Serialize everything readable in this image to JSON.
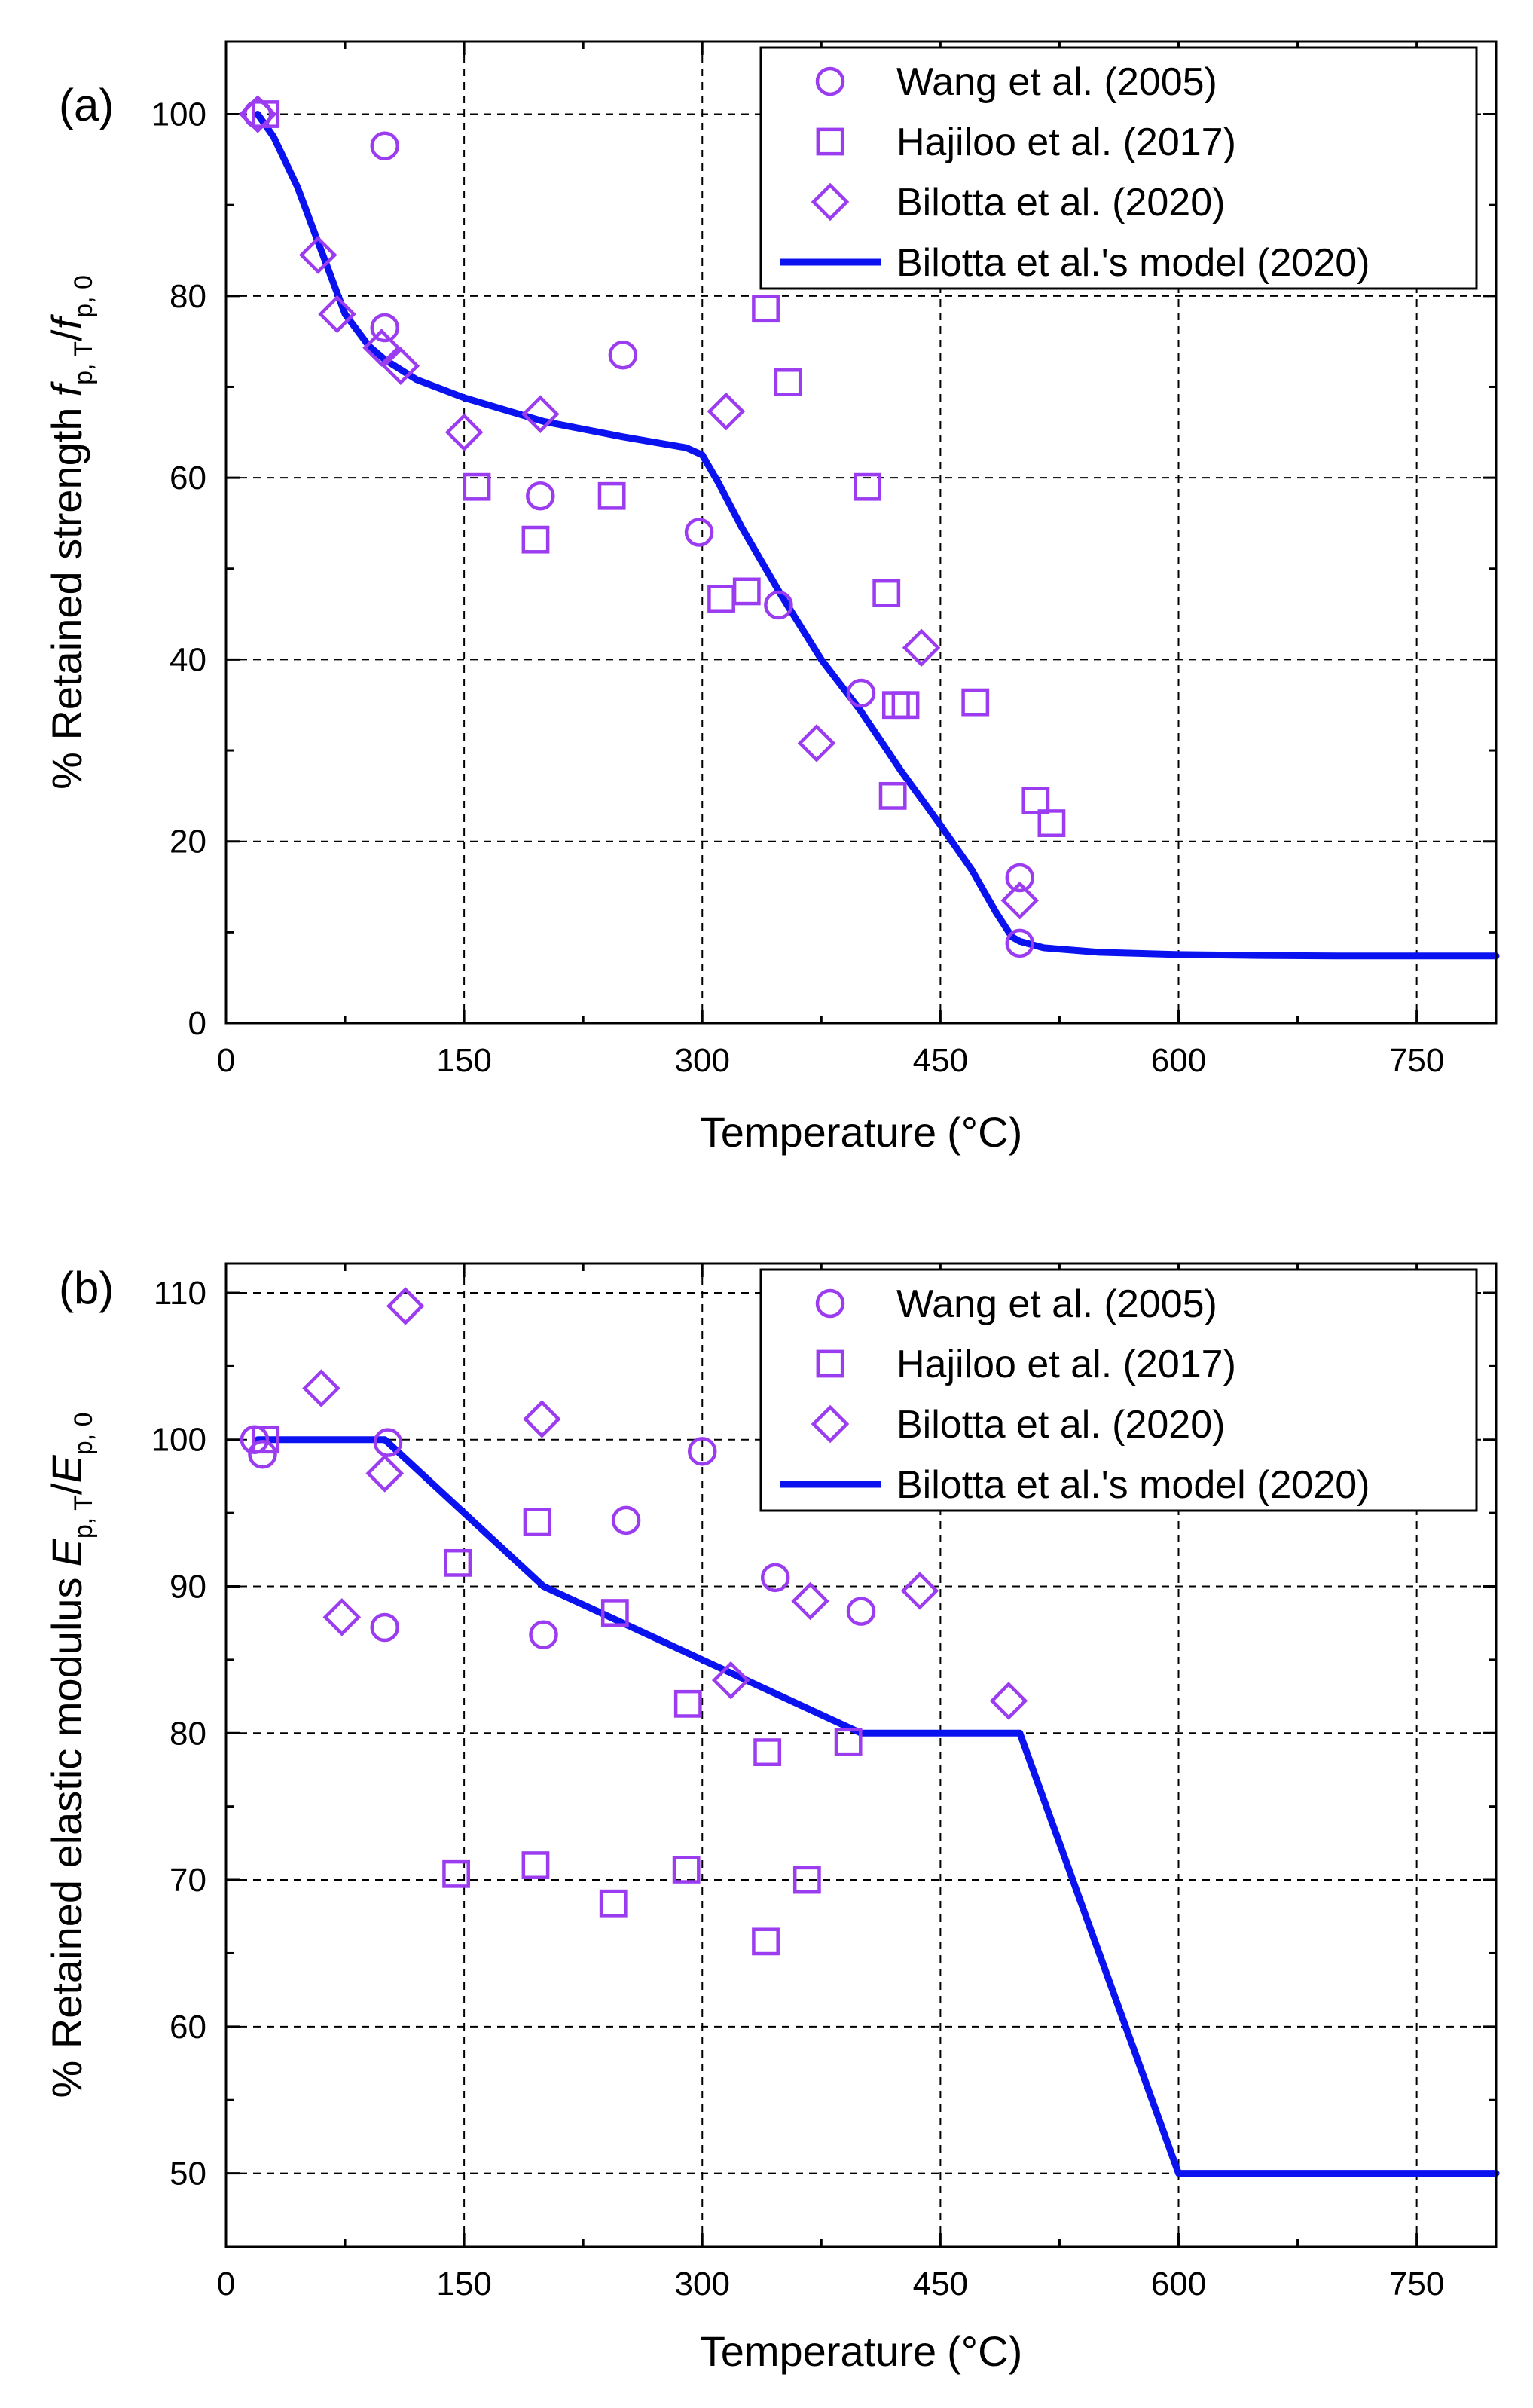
{
  "chart_data": [
    {
      "panel": "(a)",
      "type": "scatter",
      "xlabel": "Temperature",
      "xlabel_unit": "(°C)",
      "ylabel_prefix": "% Retained strength",
      "ylabel_symbol_1": "f",
      "ylabel_sub_1": "p, T",
      "ylabel_sep": "/",
      "ylabel_symbol_2": "f",
      "ylabel_sub_2": "p, 0",
      "xlim": [
        0,
        800
      ],
      "ylim": [
        0,
        108
      ],
      "xticks": [
        0,
        150,
        300,
        450,
        600,
        750
      ],
      "yticks": [
        0,
        20,
        40,
        60,
        80,
        100
      ],
      "grid": true,
      "legend_position": "top-right",
      "series": [
        {
          "name": "Wang et al. (2005)",
          "marker": "circle",
          "color": "#9b3cf0",
          "points": [
            [
              20,
              100
            ],
            [
              100,
              96.5
            ],
            [
              100,
              76.5
            ],
            [
              198,
              58
            ],
            [
              250,
              73.5
            ],
            [
              298,
              54
            ],
            [
              348,
              46
            ],
            [
              400,
              36.3
            ],
            [
              500,
              16
            ],
            [
              500,
              8.8
            ]
          ]
        },
        {
          "name": "Hajiloo et al. (2017)",
          "marker": "square",
          "color": "#9b3cf0",
          "points": [
            [
              25,
              100
            ],
            [
              158,
              59
            ],
            [
              195,
              53.2
            ],
            [
              243,
              58
            ],
            [
              312,
              46.7
            ],
            [
              328,
              47.5
            ],
            [
              340,
              78.6
            ],
            [
              354,
              70.5
            ],
            [
              404,
              59
            ],
            [
              416,
              47.3
            ],
            [
              420,
              25
            ],
            [
              422,
              35
            ],
            [
              428,
              35
            ],
            [
              472,
              35.3
            ],
            [
              510,
              24.5
            ],
            [
              520,
              22
            ]
          ]
        },
        {
          "name": "Bilotta et al. (2020)",
          "marker": "diamond",
          "color": "#9b3cf0",
          "points": [
            [
              20,
              100
            ],
            [
              58,
              84.5
            ],
            [
              70,
              78
            ],
            [
              98,
              74.3
            ],
            [
              110,
              72.3
            ],
            [
              150,
              65
            ],
            [
              198,
              67
            ],
            [
              315,
              67.3
            ],
            [
              372,
              30.8
            ],
            [
              438,
              41.3
            ],
            [
              500,
              13.5
            ]
          ]
        },
        {
          "name": "Bilotta et al.'s model (2020)",
          "type": "line",
          "color": "#0b12f0",
          "points": [
            [
              20,
              100
            ],
            [
              30,
              97.5
            ],
            [
              45,
              92
            ],
            [
              60,
              85
            ],
            [
              75,
              78
            ],
            [
              90,
              74.5
            ],
            [
              100,
              73
            ],
            [
              120,
              70.8
            ],
            [
              150,
              68.8
            ],
            [
              200,
              66.2
            ],
            [
              250,
              64.5
            ],
            [
              290,
              63.3
            ],
            [
              300,
              62.5
            ],
            [
              310,
              59.5
            ],
            [
              325,
              54.5
            ],
            [
              350,
              47
            ],
            [
              375,
              40
            ],
            [
              400,
              34.3
            ],
            [
              425,
              27.8
            ],
            [
              450,
              21.8
            ],
            [
              470,
              16.8
            ],
            [
              485,
              12.2
            ],
            [
              495,
              9.5
            ],
            [
              500,
              9
            ],
            [
              515,
              8.3
            ],
            [
              550,
              7.8
            ],
            [
              600,
              7.55
            ],
            [
              650,
              7.45
            ],
            [
              700,
              7.4
            ],
            [
              800,
              7.4
            ]
          ]
        }
      ]
    },
    {
      "panel": "(b)",
      "type": "scatter",
      "xlabel": "Temperature",
      "xlabel_unit": "(°C)",
      "ylabel_prefix": "% Retained elastic modulus",
      "ylabel_symbol_1": "E",
      "ylabel_sub_1": "p, T",
      "ylabel_sep": "/",
      "ylabel_symbol_2": "E",
      "ylabel_sub_2": "p, 0",
      "xlim": [
        0,
        800
      ],
      "ylim": [
        45,
        112
      ],
      "xticks": [
        0,
        150,
        300,
        450,
        600,
        750
      ],
      "yticks": [
        50,
        60,
        70,
        80,
        90,
        100,
        110
      ],
      "grid": true,
      "legend_position": "top-right",
      "series": [
        {
          "name": "Wang et al. (2005)",
          "marker": "circle",
          "color": "#9b3cf0",
          "points": [
            [
              18,
              100
            ],
            [
              23,
              99
            ],
            [
              102,
              99.8
            ],
            [
              100,
              87.2
            ],
            [
              200,
              86.7
            ],
            [
              252,
              94.5
            ],
            [
              300,
              99.2
            ],
            [
              346,
              90.6
            ],
            [
              400,
              88.3
            ]
          ]
        },
        {
          "name": "Hajiloo et al. (2017)",
          "marker": "square",
          "color": "#9b3cf0",
          "points": [
            [
              25,
              100
            ],
            [
              145,
              70.4
            ],
            [
              146,
              91.6
            ],
            [
              195,
              71
            ],
            [
              196,
              94.4
            ],
            [
              244,
              68.4
            ],
            [
              245,
              88.2
            ],
            [
              290,
              70.7
            ],
            [
              291,
              82
            ],
            [
              340,
              65.8
            ],
            [
              341,
              78.7
            ],
            [
              366,
              70
            ],
            [
              392,
              79.4
            ]
          ]
        },
        {
          "name": "Bilotta et al. (2020)",
          "marker": "diamond",
          "color": "#9b3cf0",
          "points": [
            [
              60,
              103.5
            ],
            [
              73,
              87.9
            ],
            [
              100,
              97.7
            ],
            [
              113,
              109.1
            ],
            [
              199,
              101.4
            ],
            [
              318,
              83.6
            ],
            [
              368,
              89
            ],
            [
              437,
              89.7
            ],
            [
              493,
              82.2
            ]
          ]
        },
        {
          "name": "Bilotta et al.'s model (2020)",
          "type": "line",
          "color": "#0b12f0",
          "points": [
            [
              20,
              100
            ],
            [
              100,
              100
            ],
            [
              200,
              90
            ],
            [
              400,
              80
            ],
            [
              500,
              80
            ],
            [
              600,
              50
            ],
            [
              800,
              50
            ]
          ]
        }
      ]
    }
  ]
}
